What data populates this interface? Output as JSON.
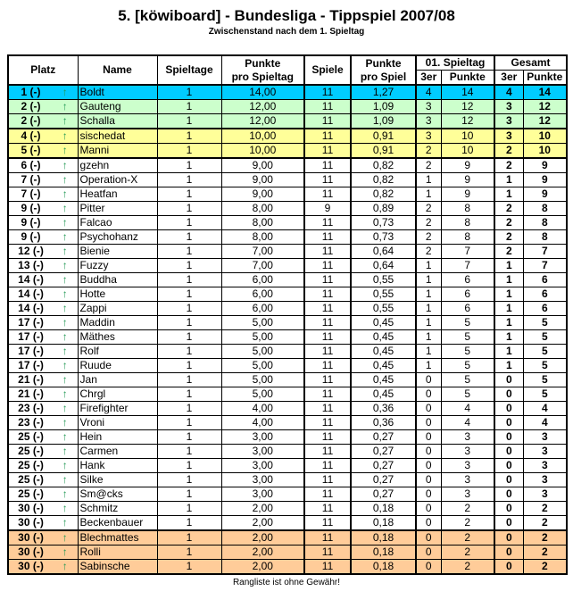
{
  "title": "5. [köwiboard] - Bundesliga - Tippspiel 2007/08",
  "subtitle": "Zwischenstand nach dem 1. Spieltag",
  "footer": "Rangliste ist ohne Gewähr!",
  "headers": {
    "platz": "Platz",
    "name": "Name",
    "spieltage": "Spieltage",
    "pps_1": "Punkte",
    "pps_2": "pro Spieltag",
    "spiele": "Spiele",
    "ppsp_1": "Punkte",
    "ppsp_2": "pro Spiel",
    "spieltag": "01. Spieltag",
    "gesamt": "Gesamt",
    "dreier": "3er",
    "punkte": "Punkte"
  },
  "colors": {
    "leader": "#00ccff",
    "green": "#ccffcc",
    "yellow": "#ffff99",
    "orange": "#ffcc99",
    "arrow": "#229955"
  },
  "trend_icon": "arrow-up-icon",
  "rows": [
    [
      "1 (-)",
      "Boldt",
      "1",
      "14,00",
      "11",
      "1,27",
      "4",
      "14",
      "4",
      "14",
      "leader"
    ],
    [
      "2 (-)",
      "Gauteng",
      "1",
      "12,00",
      "11",
      "1,09",
      "3",
      "12",
      "3",
      "12",
      "green"
    ],
    [
      "2 (-)",
      "Schalla",
      "1",
      "12,00",
      "11",
      "1,09",
      "3",
      "12",
      "3",
      "12",
      "green"
    ],
    [
      "4 (-)",
      "sischedat",
      "1",
      "10,00",
      "11",
      "0,91",
      "3",
      "10",
      "3",
      "10",
      "yellow"
    ],
    [
      "5 (-)",
      "Manni",
      "1",
      "10,00",
      "11",
      "0,91",
      "2",
      "10",
      "2",
      "10",
      "yellow"
    ],
    [
      "6 (-)",
      "gzehn",
      "1",
      "9,00",
      "11",
      "0,82",
      "2",
      "9",
      "2",
      "9",
      ""
    ],
    [
      "7 (-)",
      "Operation-X",
      "1",
      "9,00",
      "11",
      "0,82",
      "1",
      "9",
      "1",
      "9",
      ""
    ],
    [
      "7 (-)",
      "Heatfan",
      "1",
      "9,00",
      "11",
      "0,82",
      "1",
      "9",
      "1",
      "9",
      ""
    ],
    [
      "9 (-)",
      "Pitter",
      "1",
      "8,00",
      "9",
      "0,89",
      "2",
      "8",
      "2",
      "8",
      ""
    ],
    [
      "9 (-)",
      "Falcao",
      "1",
      "8,00",
      "11",
      "0,73",
      "2",
      "8",
      "2",
      "8",
      ""
    ],
    [
      "9 (-)",
      "Psychohanz",
      "1",
      "8,00",
      "11",
      "0,73",
      "2",
      "8",
      "2",
      "8",
      ""
    ],
    [
      "12 (-)",
      "Bienie",
      "1",
      "7,00",
      "11",
      "0,64",
      "2",
      "7",
      "2",
      "7",
      ""
    ],
    [
      "13 (-)",
      "Fuzzy",
      "1",
      "7,00",
      "11",
      "0,64",
      "1",
      "7",
      "1",
      "7",
      ""
    ],
    [
      "14 (-)",
      "Buddha",
      "1",
      "6,00",
      "11",
      "0,55",
      "1",
      "6",
      "1",
      "6",
      ""
    ],
    [
      "14 (-)",
      "Hotte",
      "1",
      "6,00",
      "11",
      "0,55",
      "1",
      "6",
      "1",
      "6",
      ""
    ],
    [
      "14 (-)",
      "Zappi",
      "1",
      "6,00",
      "11",
      "0,55",
      "1",
      "6",
      "1",
      "6",
      ""
    ],
    [
      "17 (-)",
      "Maddin",
      "1",
      "5,00",
      "11",
      "0,45",
      "1",
      "5",
      "1",
      "5",
      ""
    ],
    [
      "17 (-)",
      "Mäthes",
      "1",
      "5,00",
      "11",
      "0,45",
      "1",
      "5",
      "1",
      "5",
      ""
    ],
    [
      "17 (-)",
      "Rolf",
      "1",
      "5,00",
      "11",
      "0,45",
      "1",
      "5",
      "1",
      "5",
      ""
    ],
    [
      "17 (-)",
      "Ruude",
      "1",
      "5,00",
      "11",
      "0,45",
      "1",
      "5",
      "1",
      "5",
      ""
    ],
    [
      "21 (-)",
      "Jan",
      "1",
      "5,00",
      "11",
      "0,45",
      "0",
      "5",
      "0",
      "5",
      ""
    ],
    [
      "21 (-)",
      "Chrgl",
      "1",
      "5,00",
      "11",
      "0,45",
      "0",
      "5",
      "0",
      "5",
      ""
    ],
    [
      "23 (-)",
      "Firefighter",
      "1",
      "4,00",
      "11",
      "0,36",
      "0",
      "4",
      "0",
      "4",
      ""
    ],
    [
      "23 (-)",
      "Vroni",
      "1",
      "4,00",
      "11",
      "0,36",
      "0",
      "4",
      "0",
      "4",
      ""
    ],
    [
      "25 (-)",
      "Hein",
      "1",
      "3,00",
      "11",
      "0,27",
      "0",
      "3",
      "0",
      "3",
      ""
    ],
    [
      "25 (-)",
      "Carmen",
      "1",
      "3,00",
      "11",
      "0,27",
      "0",
      "3",
      "0",
      "3",
      ""
    ],
    [
      "25 (-)",
      "Hank",
      "1",
      "3,00",
      "11",
      "0,27",
      "0",
      "3",
      "0",
      "3",
      ""
    ],
    [
      "25 (-)",
      "Silke",
      "1",
      "3,00",
      "11",
      "0,27",
      "0",
      "3",
      "0",
      "3",
      ""
    ],
    [
      "25 (-)",
      "Sm@cks",
      "1",
      "3,00",
      "11",
      "0,27",
      "0",
      "3",
      "0",
      "3",
      ""
    ],
    [
      "30 (-)",
      "Schmitz",
      "1",
      "2,00",
      "11",
      "0,18",
      "0",
      "2",
      "0",
      "2",
      ""
    ],
    [
      "30 (-)",
      "Beckenbauer",
      "1",
      "2,00",
      "11",
      "0,18",
      "0",
      "2",
      "0",
      "2",
      ""
    ],
    [
      "30 (-)",
      "Blechmattes",
      "1",
      "2,00",
      "11",
      "0,18",
      "0",
      "2",
      "0",
      "2",
      "orange"
    ],
    [
      "30 (-)",
      "Rolli",
      "1",
      "2,00",
      "11",
      "0,18",
      "0",
      "2",
      "0",
      "2",
      "orange"
    ],
    [
      "30 (-)",
      "Sabinsche",
      "1",
      "2,00",
      "11",
      "0,18",
      "0",
      "2",
      "0",
      "2",
      "orange"
    ]
  ]
}
